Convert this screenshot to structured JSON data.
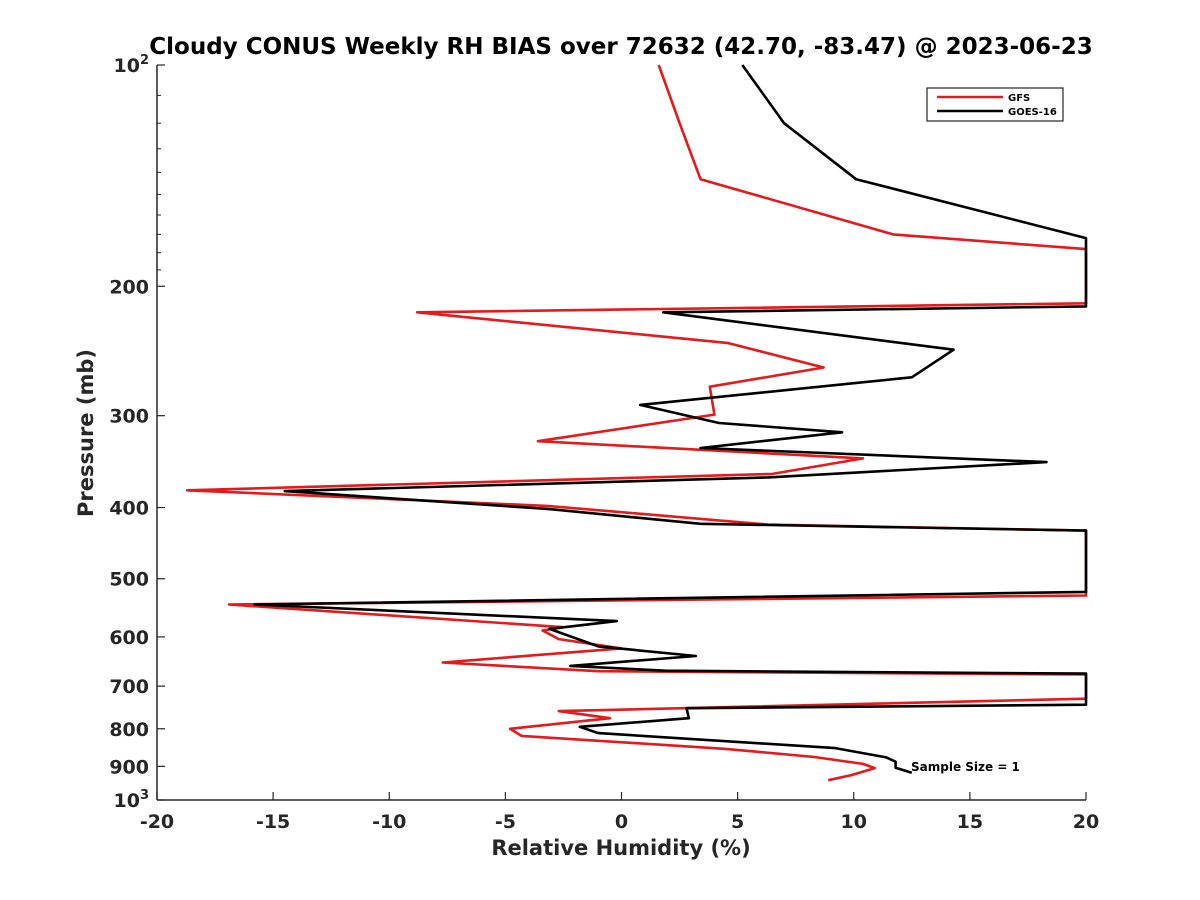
{
  "chart_data": {
    "type": "line",
    "title": "Cloudy CONUS Weekly RH BIAS over 72632 (42.70, -83.47) @ 2023-06-23",
    "xlabel": "Relative Humidity (%)",
    "ylabel": "Pressure (mb)",
    "xlim": [
      -20,
      20
    ],
    "ylim": [
      100,
      1000
    ],
    "y_scale": "log",
    "y_reversed": true,
    "grid": false,
    "legend_position": "top-right",
    "x_ticks": [
      -20,
      -15,
      -10,
      -5,
      0,
      5,
      10,
      15,
      20
    ],
    "x_tick_labels": [
      "-20",
      "-15",
      "-10",
      "-5",
      "0",
      "5",
      "10",
      "15",
      "20"
    ],
    "y_ticks": [
      {
        "value": 100,
        "base": "10",
        "exp": "2"
      },
      {
        "value": 200,
        "label": "200"
      },
      {
        "value": 300,
        "label": "300"
      },
      {
        "value": 400,
        "label": "400"
      },
      {
        "value": 500,
        "label": "500"
      },
      {
        "value": 600,
        "label": "600"
      },
      {
        "value": 700,
        "label": "700"
      },
      {
        "value": 800,
        "label": "800"
      },
      {
        "value": 900,
        "label": "900"
      },
      {
        "value": 1000,
        "base": "10",
        "exp": "3"
      }
    ],
    "series": [
      {
        "name": "GFS",
        "color": "#e41a1c",
        "points": [
          [
            1.6,
            100
          ],
          [
            2.5,
            120
          ],
          [
            3.4,
            143
          ],
          [
            11.7,
            170
          ],
          [
            20.0,
            178
          ],
          [
            20.0,
            211
          ],
          [
            -8.8,
            217
          ],
          [
            4.6,
            239
          ],
          [
            8.7,
            258
          ],
          [
            3.8,
            274
          ],
          [
            4.0,
            299
          ],
          [
            -3.6,
            325
          ],
          [
            10.4,
            343
          ],
          [
            6.5,
            360
          ],
          [
            -18.7,
            379
          ],
          [
            -3.2,
            398
          ],
          [
            6.3,
            422
          ],
          [
            20.0,
            430
          ],
          [
            20.0,
            527
          ],
          [
            -16.9,
            542
          ],
          [
            -2.5,
            582
          ],
          [
            -3.4,
            588
          ],
          [
            -2.7,
            604
          ],
          [
            0.0,
            622
          ],
          [
            -7.7,
            650
          ],
          [
            -1.0,
            668
          ],
          [
            20.0,
            675
          ],
          [
            20.0,
            728
          ],
          [
            -2.7,
            757
          ],
          [
            -0.5,
            774
          ],
          [
            -4.8,
            800
          ],
          [
            -4.3,
            818
          ],
          [
            4.5,
            852
          ],
          [
            8.3,
            874
          ],
          [
            10.4,
            893
          ],
          [
            10.9,
            905
          ],
          [
            9.9,
            925
          ],
          [
            8.9,
            940
          ]
        ]
      },
      {
        "name": "GOES-16",
        "color": "#000000",
        "points": [
          [
            5.2,
            100
          ],
          [
            7.0,
            120
          ],
          [
            10.1,
            143
          ],
          [
            20.0,
            172
          ],
          [
            20.0,
            213
          ],
          [
            1.8,
            217
          ],
          [
            14.3,
            244
          ],
          [
            12.5,
            266
          ],
          [
            0.8,
            290
          ],
          [
            4.2,
            307
          ],
          [
            9.5,
            316
          ],
          [
            3.4,
            332
          ],
          [
            18.3,
            347
          ],
          [
            6.3,
            364
          ],
          [
            -14.5,
            380
          ],
          [
            -3.1,
            402
          ],
          [
            3.4,
            421
          ],
          [
            20.0,
            430
          ],
          [
            20.0,
            521
          ],
          [
            -15.8,
            542
          ],
          [
            -0.2,
            571
          ],
          [
            -3.1,
            585
          ],
          [
            -1.0,
            618
          ],
          [
            3.2,
            637
          ],
          [
            -2.2,
            657
          ],
          [
            1.9,
            667
          ],
          [
            20.0,
            673
          ],
          [
            20.0,
            742
          ],
          [
            2.8,
            750
          ],
          [
            2.9,
            774
          ],
          [
            -1.8,
            795
          ],
          [
            -1.0,
            811
          ],
          [
            9.2,
            850
          ],
          [
            11.4,
            875
          ],
          [
            11.8,
            887
          ],
          [
            11.8,
            904
          ],
          [
            12.5,
            918
          ]
        ]
      }
    ],
    "annotation": "Sample Size = 1"
  }
}
